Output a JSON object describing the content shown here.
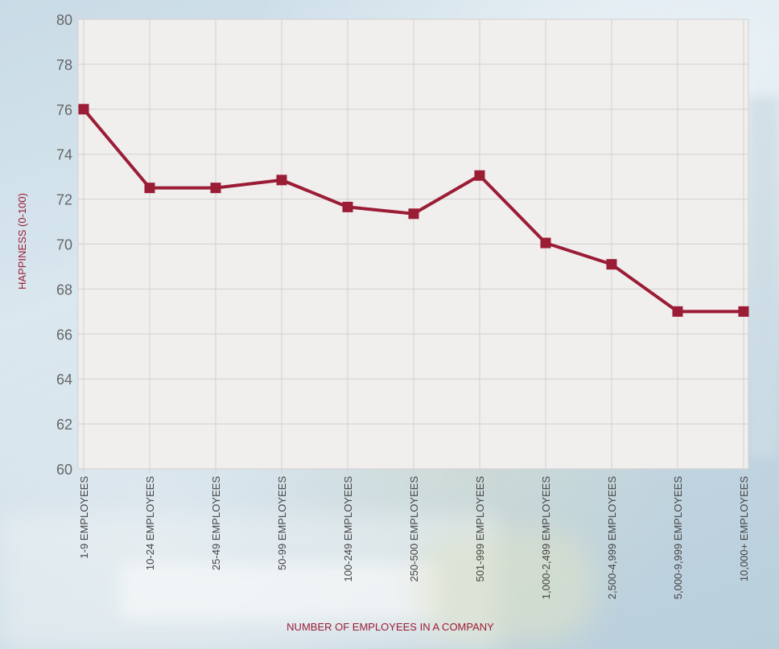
{
  "chart_data": {
    "type": "line",
    "title": "",
    "xlabel": "NUMBER OF EMPLOYEES IN A COMPANY",
    "ylabel": "HAPPINESS (0-100)",
    "ylim": [
      60,
      80
    ],
    "yticks": [
      60,
      62,
      64,
      66,
      68,
      70,
      72,
      74,
      76,
      78,
      80
    ],
    "grid": true,
    "legend": "none",
    "categories": [
      "1-9 EMPLOYEES",
      "10-24  EMPLOYEES",
      "25-49 EMPLOYEES",
      "50-99 EMPLOYEES",
      "100-249 EMPLOYEES",
      "250-500 EMPLOYEES",
      "501-999 EMPLOYEES",
      "1,000-2,499 EMPLOYEES",
      "2,500-4,999 EMPLOYEES",
      "5,000-9,999 EMPLOYEES",
      "10,000+ EMPLOYEES"
    ],
    "series": [
      {
        "values": [
          76,
          72.5,
          72.5,
          72.85,
          71.65,
          71.35,
          73.05,
          70.05,
          69.1,
          67,
          67
        ],
        "color": "#9b1c35"
      }
    ],
    "colors": {
      "line": "#9b1c35",
      "plot_background": "#f1eeee",
      "grid": "#d2d0d0",
      "tick_text": "#666666",
      "category_text": "#444444",
      "axis_title": "#9b1c35"
    }
  }
}
